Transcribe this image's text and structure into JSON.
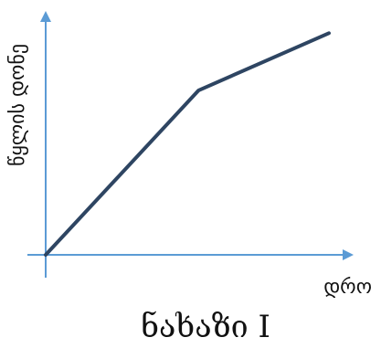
{
  "chart_data": {
    "type": "line",
    "title": "",
    "xlabel": "დრო",
    "ylabel": "წყლის დონე",
    "caption": "ნახაზი I",
    "series": [
      {
        "x": [
          0,
          5.4,
          10
        ],
        "values": [
          0,
          6.9,
          9.3
        ]
      }
    ],
    "xlim": [
      0,
      10
    ],
    "ylim": [
      0,
      10
    ],
    "grid": false,
    "ticks": false,
    "legend": "none",
    "colors": {
      "axis": "#5b9bd5",
      "series": "#2e4562",
      "text": "#111111"
    }
  }
}
